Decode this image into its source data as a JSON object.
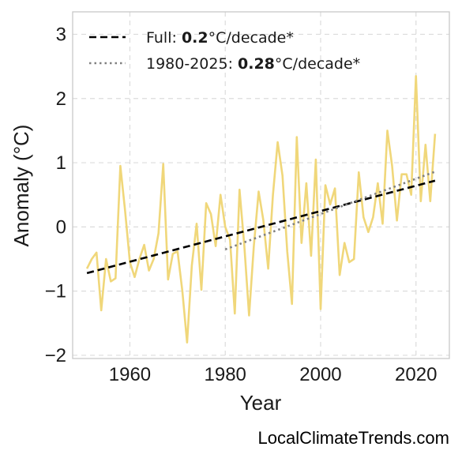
{
  "chart_data": {
    "type": "line",
    "xlabel": "Year",
    "ylabel": "Anomaly (°C)",
    "xlim": [
      1948,
      2027
    ],
    "ylim": [
      -2.05,
      3.35
    ],
    "xticks": [
      1960,
      1980,
      2000,
      2020
    ],
    "yticks": [
      {
        "value": 3,
        "label": "3"
      },
      {
        "value": 2,
        "label": "2"
      },
      {
        "value": 1,
        "label": "1"
      },
      {
        "value": 0,
        "label": "0"
      },
      {
        "value": -1,
        "label": "−1"
      },
      {
        "value": -2,
        "label": "−2"
      }
    ],
    "grid": true,
    "legend_position": "top-left",
    "series": [
      {
        "color": "#f0d77a",
        "x": [
          1951,
          1952,
          1953,
          1954,
          1955,
          1956,
          1957,
          1958,
          1959,
          1960,
          1961,
          1962,
          1963,
          1964,
          1965,
          1966,
          1967,
          1968,
          1969,
          1970,
          1971,
          1972,
          1973,
          1974,
          1975,
          1976,
          1977,
          1978,
          1979,
          1980,
          1981,
          1982,
          1983,
          1984,
          1985,
          1986,
          1987,
          1988,
          1989,
          1990,
          1991,
          1992,
          1993,
          1994,
          1995,
          1996,
          1997,
          1998,
          1999,
          2000,
          2001,
          2002,
          2003,
          2004,
          2005,
          2006,
          2007,
          2008,
          2009,
          2010,
          2011,
          2012,
          2013,
          2014,
          2015,
          2016,
          2017,
          2018,
          2019,
          2020,
          2021,
          2022,
          2023,
          2024
        ],
        "y": [
          -0.65,
          -0.5,
          -0.4,
          -1.3,
          -0.5,
          -0.85,
          -0.8,
          0.95,
          0.25,
          -0.55,
          -0.78,
          -0.5,
          -0.28,
          -0.68,
          -0.5,
          -0.1,
          0.98,
          -0.82,
          -0.42,
          -0.38,
          -1.0,
          -1.8,
          -0.6,
          0.05,
          -0.98,
          0.37,
          0.2,
          -0.3,
          0.5,
          0.0,
          -0.2,
          -1.35,
          0.58,
          -0.3,
          -1.38,
          -0.3,
          0.55,
          0.1,
          -0.65,
          0.5,
          1.32,
          0.8,
          -0.38,
          -1.2,
          1.4,
          -0.25,
          0.68,
          -0.45,
          1.05,
          -1.28,
          0.65,
          0.35,
          0.6,
          -0.75,
          -0.25,
          -0.55,
          -0.5,
          0.85,
          0.15,
          -0.08,
          0.15,
          0.68,
          0.05,
          1.5,
          0.95,
          0.1,
          0.82,
          0.82,
          0.5,
          2.35,
          0.4,
          1.28,
          0.4,
          1.45
        ]
      }
    ],
    "trendlines": [
      {
        "name_prefix": "Full: ",
        "name_value": "0.2",
        "name_suffix": "°C/decade*",
        "style": "dashed",
        "color": "#000000",
        "x": [
          1951,
          2024
        ],
        "y": [
          -0.72,
          0.72
        ]
      },
      {
        "name_prefix": "1980-2025: ",
        "name_value": "0.28",
        "name_suffix": "°C/decade*",
        "style": "dotted",
        "color": "#808080",
        "x": [
          1980,
          2024
        ],
        "y": [
          -0.35,
          0.86
        ]
      }
    ]
  },
  "credit": "LocalClimateTrends.com"
}
